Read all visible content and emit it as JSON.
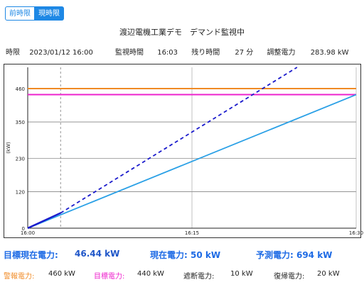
{
  "tabs": {
    "prev_label": "前時限",
    "current_label": "現時限"
  },
  "title": "渡辺電機工業デモ　デマンド監視中",
  "info": {
    "period_label": "時限",
    "period_value": "2023/01/12 16:00",
    "monitor_time_label": "監視時間",
    "monitor_time_value": "16:03",
    "remaining_label": "残り時間",
    "remaining_value": "27 分",
    "adjust_label": "調整電力",
    "adjust_value": "283.98 kW"
  },
  "summary": {
    "target_current_label": "目標現在電力:",
    "target_current_value": "46.44 kW",
    "current_label": "現在電力: 50 kW",
    "forecast_label": "予測電力: 694 kW"
  },
  "limits": {
    "alarm_label": "警報電力:",
    "alarm_value": "460 kW",
    "target_label": "目標電力:",
    "target_value": "440 kW",
    "cutoff_label": "遮断電力:",
    "cutoff_value": "10 kW",
    "restore_label": "復帰電力:",
    "restore_value": "20 kW"
  },
  "colors": {
    "accent": "#1e88e5",
    "alarm": "#f08a24",
    "target": "#ee22cc",
    "target_line": "#2aa0e6",
    "forecast": "#1a1acc",
    "label_blue": "#1e6be5",
    "label_orange": "#f08a24",
    "label_magenta": "#ee22cc"
  },
  "chart_data": {
    "type": "line",
    "ylabel": "(kW)",
    "x_ticks": [
      "16:00",
      "16:15",
      "16:30"
    ],
    "x_range_min": [
      0,
      30
    ],
    "y_ticks": [
      0,
      120,
      230,
      350,
      460
    ],
    "ylim": [
      0,
      530
    ],
    "current_time_min": 3,
    "grid": true,
    "series": [
      {
        "name": "警報電力",
        "x": [
          0,
          30
        ],
        "y": [
          460,
          460
        ]
      },
      {
        "name": "目標電力",
        "x": [
          0,
          30
        ],
        "y": [
          440,
          440
        ]
      },
      {
        "name": "目標現在電力",
        "x": [
          0,
          30
        ],
        "y": [
          0,
          440
        ]
      },
      {
        "name": "予測電力",
        "x": [
          3,
          24.6
        ],
        "y": [
          50,
          530
        ]
      },
      {
        "name": "現在電力",
        "x": [
          0,
          3
        ],
        "y": [
          0,
          50
        ]
      }
    ]
  }
}
